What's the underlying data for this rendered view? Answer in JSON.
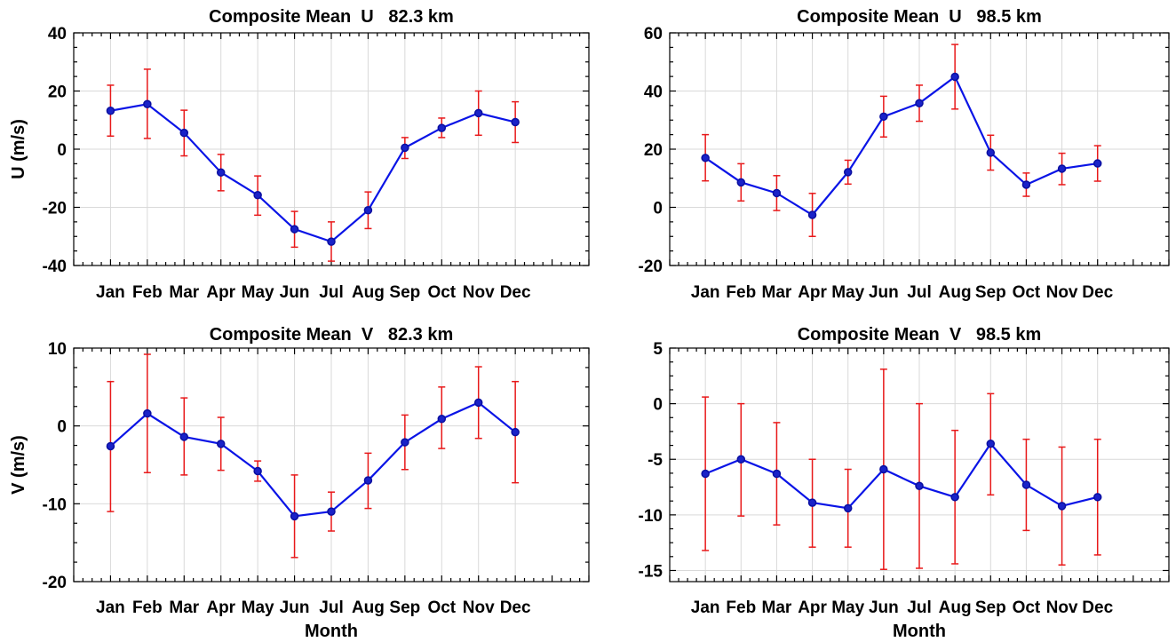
{
  "chart_data": [
    {
      "type": "line",
      "title": "Composite Mean  U   82.3 km",
      "xlabel": "",
      "ylabel": "U (m/s)",
      "categories": [
        "Jan",
        "Feb",
        "Mar",
        "Apr",
        "May",
        "Jun",
        "Jul",
        "Aug",
        "Sep",
        "Oct",
        "Nov",
        "Dec"
      ],
      "ylim": [
        -40,
        40
      ],
      "yticks": [
        -40,
        -20,
        0,
        20,
        40
      ],
      "grid": true,
      "series": [
        {
          "values": [
            13.2,
            15.5,
            5.6,
            -8.0,
            -15.8,
            -27.5,
            -31.8,
            -21.0,
            0.5,
            7.3,
            12.4,
            9.3
          ],
          "err_low": [
            4.5,
            3.7,
            -2.3,
            -14.3,
            -22.7,
            -33.7,
            -38.5,
            -27.3,
            -3.2,
            4.0,
            4.8,
            2.3
          ],
          "err_high": [
            22.0,
            27.5,
            13.4,
            -1.8,
            -9.2,
            -21.4,
            -25.0,
            -14.7,
            4.0,
            10.7,
            20.0,
            16.3
          ],
          "color": "#0a14e6",
          "error_color": "#e8191a"
        }
      ]
    },
    {
      "type": "line",
      "title": "Composite Mean  U   98.5 km",
      "xlabel": "",
      "ylabel": "",
      "categories": [
        "Jan",
        "Feb",
        "Mar",
        "Apr",
        "May",
        "Jun",
        "Jul",
        "Aug",
        "Sep",
        "Oct",
        "Nov",
        "Dec"
      ],
      "ylim": [
        -20,
        60
      ],
      "yticks": [
        -20,
        0,
        20,
        40,
        60
      ],
      "grid": true,
      "series": [
        {
          "values": [
            17.0,
            8.6,
            4.9,
            -2.6,
            12.1,
            31.2,
            35.8,
            44.9,
            18.8,
            7.8,
            13.3,
            15.1
          ],
          "err_low": [
            9.1,
            2.2,
            -1.1,
            -10.0,
            8.0,
            24.2,
            29.6,
            33.8,
            12.8,
            3.8,
            7.8,
            9.0
          ],
          "err_high": [
            25.0,
            15.0,
            10.9,
            4.8,
            16.2,
            38.2,
            42.0,
            56.0,
            24.8,
            11.8,
            18.6,
            21.2
          ],
          "color": "#0a14e6",
          "error_color": "#e8191a"
        }
      ]
    },
    {
      "type": "line",
      "title": "Composite Mean  V   82.3 km",
      "xlabel": "Month",
      "ylabel": "V (m/s)",
      "categories": [
        "Jan",
        "Feb",
        "Mar",
        "Apr",
        "May",
        "Jun",
        "Jul",
        "Aug",
        "Sep",
        "Oct",
        "Nov",
        "Dec"
      ],
      "ylim": [
        -20,
        10
      ],
      "yticks": [
        -20,
        -10,
        0,
        10
      ],
      "grid": true,
      "series": [
        {
          "values": [
            -2.6,
            1.6,
            -1.4,
            -2.3,
            -5.8,
            -11.6,
            -11.0,
            -7.0,
            -2.1,
            0.9,
            3.0,
            -0.8
          ],
          "err_low": [
            -11.0,
            -6.0,
            -6.3,
            -5.7,
            -7.1,
            -16.9,
            -13.5,
            -10.6,
            -5.6,
            -2.9,
            -1.6,
            -7.3
          ],
          "err_high": [
            5.7,
            9.2,
            3.6,
            1.1,
            -4.5,
            -6.3,
            -8.5,
            -3.5,
            1.4,
            5.0,
            7.6,
            5.7
          ],
          "color": "#0a14e6",
          "error_color": "#e8191a"
        }
      ]
    },
    {
      "type": "line",
      "title": "Composite Mean  V   98.5 km",
      "xlabel": "Month",
      "ylabel": "",
      "categories": [
        "Jan",
        "Feb",
        "Mar",
        "Apr",
        "May",
        "Jun",
        "Jul",
        "Aug",
        "Sep",
        "Oct",
        "Nov",
        "Dec"
      ],
      "ylim": [
        -16,
        5
      ],
      "yticks": [
        -15,
        -10,
        -5,
        0,
        5
      ],
      "grid": true,
      "series": [
        {
          "values": [
            -6.3,
            -5.0,
            -6.3,
            -8.9,
            -9.4,
            -5.9,
            -7.4,
            -8.4,
            -3.6,
            -7.3,
            -9.2,
            -8.4
          ],
          "err_low": [
            -13.2,
            -10.1,
            -10.9,
            -12.9,
            -12.9,
            -14.9,
            -14.8,
            -14.4,
            -8.2,
            -11.4,
            -14.5,
            -13.6
          ],
          "err_high": [
            0.6,
            0.0,
            -1.7,
            -5.0,
            -5.9,
            3.1,
            0.0,
            -2.4,
            0.9,
            -3.2,
            -3.9,
            -3.2
          ],
          "color": "#0a14e6",
          "error_color": "#e8191a"
        }
      ]
    }
  ]
}
